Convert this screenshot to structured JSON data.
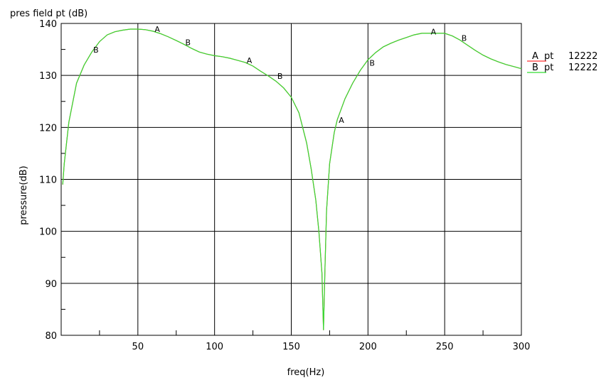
{
  "chart_data": {
    "type": "line",
    "title": "pres field pt (dB)",
    "xlabel": "freq(Hz)",
    "ylabel": "pressure(dB)",
    "xlim": [
      0,
      300
    ],
    "ylim": [
      80,
      140
    ],
    "xticks": [
      50,
      100,
      150,
      200,
      250,
      300
    ],
    "yticks": [
      80,
      90,
      100,
      110,
      120,
      130,
      140
    ],
    "grid": true,
    "colors": {
      "A": "#ff3333",
      "B": "#33dd33"
    },
    "series": [
      {
        "name": "A",
        "x": [
          1,
          2,
          5,
          10,
          15,
          20,
          25,
          30,
          35,
          40,
          45,
          50,
          55,
          60,
          65,
          70,
          75,
          80,
          85,
          90,
          95,
          100,
          105,
          110,
          115,
          120,
          125,
          130,
          135,
          140,
          145,
          150,
          155,
          160,
          163,
          166,
          168,
          170,
          171,
          172,
          173,
          175,
          178,
          180,
          185,
          190,
          195,
          200,
          205,
          210,
          215,
          220,
          225,
          230,
          235,
          240,
          245,
          250,
          255,
          260,
          265,
          270,
          275,
          280,
          285,
          290,
          295,
          300
        ],
        "y": [
          109,
          113,
          121,
          128.5,
          132,
          134.5,
          136.5,
          137.8,
          138.4,
          138.7,
          138.9,
          138.9,
          138.8,
          138.5,
          138,
          137.4,
          136.7,
          136,
          135.2,
          134.5,
          134.1,
          133.8,
          133.6,
          133.3,
          132.9,
          132.5,
          131.8,
          130.8,
          129.9,
          128.9,
          127.6,
          125.8,
          122.8,
          117,
          112,
          106,
          100,
          92,
          81,
          93,
          104,
          113,
          119,
          121.5,
          125.5,
          128.5,
          131,
          133,
          134.4,
          135.5,
          136.2,
          136.8,
          137.3,
          137.8,
          138.1,
          138.1,
          138.1,
          138.1,
          137.6,
          136.8,
          135.8,
          134.8,
          133.9,
          133.2,
          132.6,
          132.1,
          131.7,
          131.3
        ]
      },
      {
        "name": "B",
        "x": [
          1,
          2,
          5,
          10,
          15,
          20,
          25,
          30,
          35,
          40,
          45,
          50,
          55,
          60,
          65,
          70,
          75,
          80,
          85,
          90,
          95,
          100,
          105,
          110,
          115,
          120,
          125,
          130,
          135,
          140,
          145,
          150,
          155,
          160,
          163,
          166,
          168,
          170,
          171,
          172,
          173,
          175,
          178,
          180,
          185,
          190,
          195,
          200,
          205,
          210,
          215,
          220,
          225,
          230,
          235,
          240,
          245,
          250,
          255,
          260,
          265,
          270,
          275,
          280,
          285,
          290,
          295,
          300
        ],
        "y": [
          109,
          113,
          121,
          128.5,
          132,
          134.5,
          136.5,
          137.8,
          138.4,
          138.7,
          138.9,
          138.9,
          138.8,
          138.5,
          138,
          137.4,
          136.7,
          136,
          135.2,
          134.5,
          134.1,
          133.8,
          133.6,
          133.3,
          132.9,
          132.5,
          131.8,
          130.8,
          129.9,
          128.9,
          127.6,
          125.8,
          122.8,
          117,
          112,
          106,
          100,
          92,
          81,
          93,
          104,
          113,
          119,
          121.5,
          125.5,
          128.5,
          131,
          133,
          134.4,
          135.5,
          136.2,
          136.8,
          137.3,
          137.8,
          138.1,
          138.1,
          138.1,
          138.1,
          137.6,
          136.8,
          135.8,
          134.8,
          133.9,
          133.2,
          132.6,
          132.1,
          131.7,
          131.3
        ]
      }
    ],
    "markers": [
      {
        "label": "B",
        "x": 20,
        "y": 134.5
      },
      {
        "label": "A",
        "x": 60,
        "y": 138.5
      },
      {
        "label": "B",
        "x": 80,
        "y": 136
      },
      {
        "label": "A",
        "x": 120,
        "y": 132.5
      },
      {
        "label": "B",
        "x": 140,
        "y": 129.5
      },
      {
        "label": "A",
        "x": 180,
        "y": 121
      },
      {
        "label": "B",
        "x": 200,
        "y": 132
      },
      {
        "label": "A",
        "x": 240,
        "y": 138
      },
      {
        "label": "B",
        "x": 260,
        "y": 136.8
      }
    ],
    "legend": {
      "position": "right",
      "entries": [
        {
          "label": "A",
          "name": "pt",
          "value": "12222"
        },
        {
          "label": "B",
          "name": "pt",
          "value": "12222"
        }
      ]
    }
  }
}
